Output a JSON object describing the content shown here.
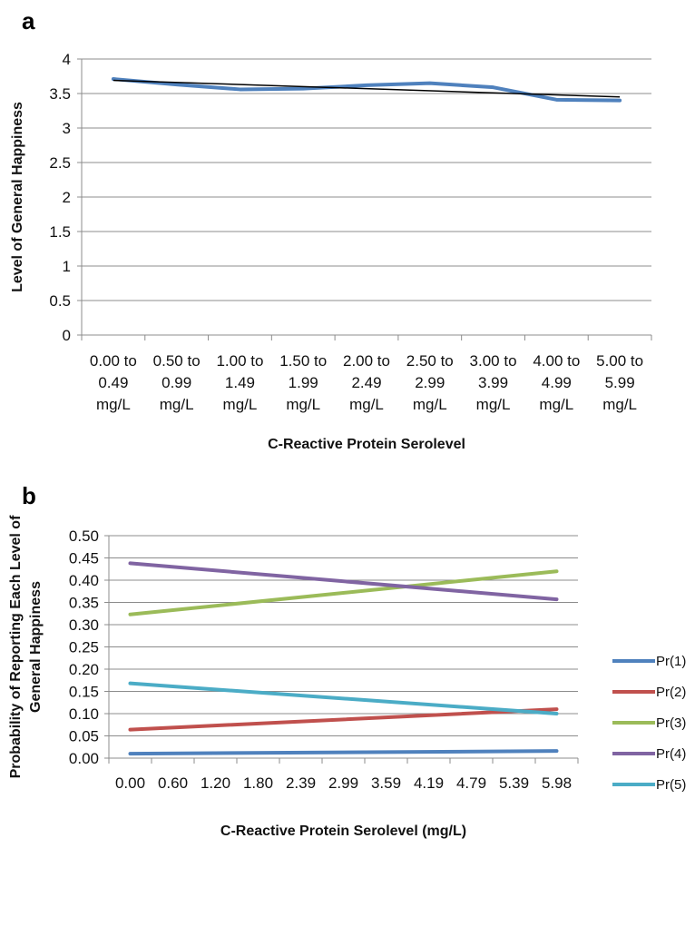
{
  "chart_data": [
    {
      "panel": "a",
      "type": "line",
      "xlabel": "C-Reactive Protein Serolevel",
      "ylabel": "Level of General Happiness",
      "ylim": [
        0,
        4
      ],
      "yticks": [
        "0",
        "0.5",
        "1",
        "1.5",
        "2",
        "2.5",
        "3",
        "3.5",
        "4"
      ],
      "grid": true,
      "categories": [
        [
          "0.00 to",
          "0.49",
          "mg/L"
        ],
        [
          "0.50 to",
          "0.99",
          "mg/L"
        ],
        [
          "1.00 to",
          "1.49",
          "mg/L"
        ],
        [
          "1.50 to",
          "1.99",
          "mg/L"
        ],
        [
          "2.00 to",
          "2.49",
          "mg/L"
        ],
        [
          "2.50 to",
          "2.99",
          "mg/L"
        ],
        [
          "3.00 to",
          "3.99",
          "mg/L"
        ],
        [
          "4.00 to",
          "4.99",
          "mg/L"
        ],
        [
          "5.00 to",
          "5.99",
          "mg/L"
        ]
      ],
      "series": [
        {
          "values": [
            3.71,
            3.63,
            3.56,
            3.57,
            3.62,
            3.65,
            3.59,
            3.41,
            3.4
          ],
          "color": "#4f81bd"
        }
      ],
      "trendline": {
        "values": [
          3.69,
          3.45
        ],
        "color": "#000000"
      }
    },
    {
      "panel": "b",
      "type": "line",
      "xlabel": "C-Reactive Protein Serolevel (mg/L)",
      "ylabel": [
        "Probability of Reporting Each Level of",
        "General Happiness"
      ],
      "ylim": [
        0,
        0.5
      ],
      "yticks": [
        "0.00",
        "0.05",
        "0.10",
        "0.15",
        "0.20",
        "0.25",
        "0.30",
        "0.35",
        "0.40",
        "0.45",
        "0.50"
      ],
      "xticks": [
        "0.00",
        "0.60",
        "1.20",
        "1.80",
        "2.39",
        "2.99",
        "3.59",
        "4.19",
        "4.79",
        "5.39",
        "5.98"
      ],
      "grid": true,
      "legend_position": "right",
      "series": [
        {
          "name": "Pr(1)",
          "values": [
            0.01,
            0.016
          ],
          "color": "#4f81bd"
        },
        {
          "name": "Pr(2)",
          "values": [
            0.064,
            0.11
          ],
          "color": "#c0504d"
        },
        {
          "name": "Pr(3)",
          "values": [
            0.323,
            0.42
          ],
          "color": "#9bbb59"
        },
        {
          "name": "Pr(4)",
          "values": [
            0.438,
            0.357
          ],
          "color": "#8064a2"
        },
        {
          "name": "Pr(5)",
          "values": [
            0.168,
            0.1
          ],
          "color": "#4bacc6"
        }
      ]
    }
  ],
  "labels": {
    "panel_a": "a",
    "panel_b": "b"
  }
}
